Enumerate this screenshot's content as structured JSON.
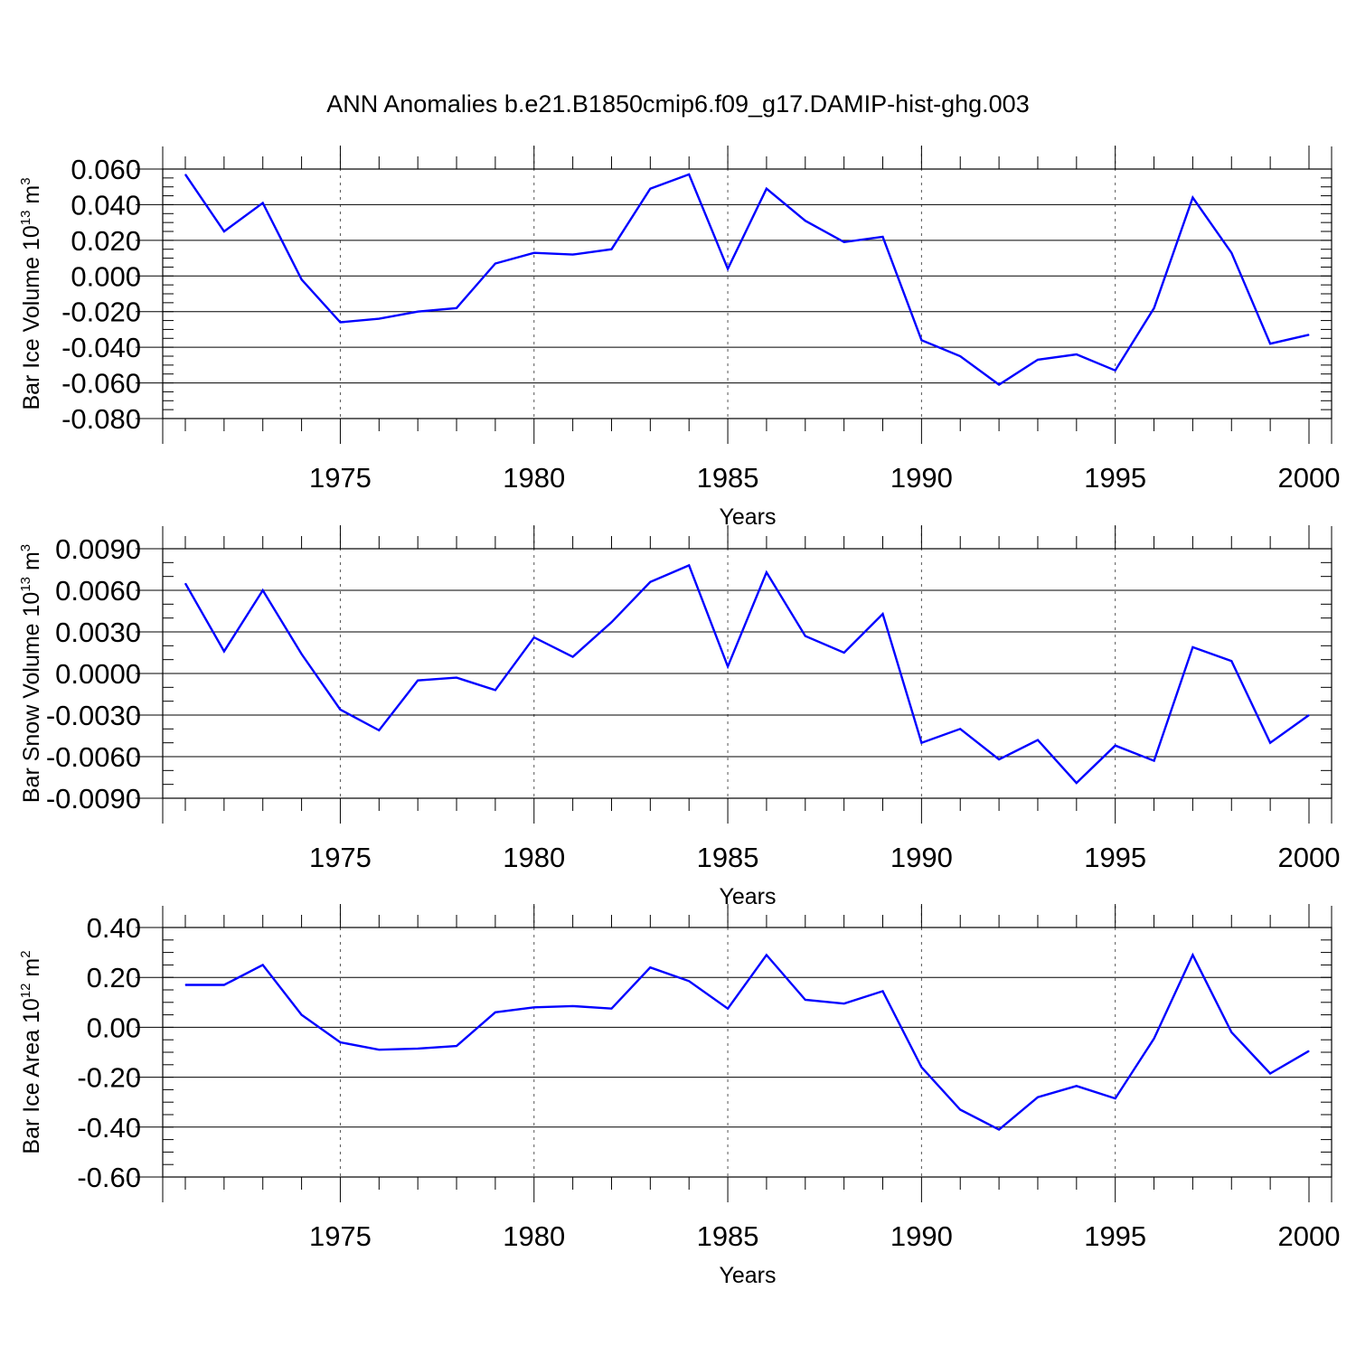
{
  "title": "ANN Anomalies b.e21.B1850cmip6.f09_g17.DAMIP-hist-ghg.003",
  "colors": {
    "series": "#0000ff",
    "grid": "#555555",
    "axis": "#000000"
  },
  "chart_data": [
    {
      "type": "line",
      "ylabel": {
        "prefix": "Bar Ice Volume 10",
        "exp": "13",
        "unit": " m",
        "unit_exp": "3"
      },
      "xlabel": "Years",
      "xlim": [
        1971,
        2000
      ],
      "ylim": [
        -0.08,
        0.06
      ],
      "yticks": [
        0.06,
        0.04,
        0.02,
        0.0,
        -0.02,
        -0.04,
        -0.06,
        -0.08
      ],
      "ytick_labels": [
        "0.060",
        "0.040",
        "0.020",
        "0.000",
        "-0.020",
        "-0.040",
        "-0.060",
        "-0.080"
      ],
      "yminor_step": 0.005,
      "xticks": [
        1975,
        1980,
        1985,
        1990,
        1995,
        2000
      ],
      "xtick_labels": [
        "1975",
        "1980",
        "1985",
        "1990",
        "1995",
        "2000"
      ],
      "grid": "vertical dashed at labeled years",
      "series": [
        {
          "x": [
            1971,
            1972,
            1973,
            1974,
            1975,
            1976,
            1977,
            1978,
            1979,
            1980,
            1981,
            1982,
            1983,
            1984,
            1985,
            1986,
            1987,
            1988,
            1989,
            1990,
            1991,
            1992,
            1993,
            1994,
            1995,
            1996,
            1997,
            1998,
            1999,
            2000
          ],
          "values": [
            0.057,
            0.025,
            0.041,
            -0.002,
            -0.026,
            -0.024,
            -0.02,
            -0.018,
            0.007,
            0.013,
            0.012,
            0.015,
            0.049,
            0.057,
            0.004,
            0.049,
            0.031,
            0.019,
            0.022,
            -0.036,
            -0.045,
            -0.061,
            -0.047,
            -0.044,
            -0.053,
            -0.018,
            0.044,
            0.013,
            -0.038,
            -0.033
          ]
        }
      ]
    },
    {
      "type": "line",
      "ylabel": {
        "prefix": "Bar Snow Volume 10",
        "exp": "13",
        "unit": " m",
        "unit_exp": "3"
      },
      "xlabel": "Years",
      "xlim": [
        1971,
        2000
      ],
      "ylim": [
        -0.009,
        0.009
      ],
      "yticks": [
        0.009,
        0.006,
        0.003,
        0.0,
        -0.003,
        -0.006,
        -0.009
      ],
      "ytick_labels": [
        "0.0090",
        "0.0060",
        "0.0030",
        "0.0000",
        "-0.0030",
        "-0.0060",
        "-0.0090"
      ],
      "yminor_step": 0.001,
      "xticks": [
        1975,
        1980,
        1985,
        1990,
        1995,
        2000
      ],
      "xtick_labels": [
        "1975",
        "1980",
        "1985",
        "1990",
        "1995",
        "2000"
      ],
      "grid": "vertical dashed at labeled years",
      "series": [
        {
          "x": [
            1971,
            1972,
            1973,
            1974,
            1975,
            1976,
            1977,
            1978,
            1979,
            1980,
            1981,
            1982,
            1983,
            1984,
            1985,
            1986,
            1987,
            1988,
            1989,
            1990,
            1991,
            1992,
            1993,
            1994,
            1995,
            1996,
            1997,
            1998,
            1999,
            2000
          ],
          "values": [
            0.0065,
            0.0016,
            0.006,
            0.0014,
            -0.0026,
            -0.0041,
            -0.0005,
            -0.0003,
            -0.0012,
            0.0026,
            0.0012,
            0.0037,
            0.0066,
            0.0078,
            0.0005,
            0.0073,
            0.0027,
            0.0015,
            0.0043,
            -0.005,
            -0.004,
            -0.0062,
            -0.0048,
            -0.0079,
            -0.0052,
            -0.0063,
            0.0019,
            0.0009,
            -0.005,
            -0.003
          ]
        }
      ]
    },
    {
      "type": "line",
      "ylabel": {
        "prefix": "Bar Ice Area 10",
        "exp": "12",
        "unit": " m",
        "unit_exp": "2"
      },
      "xlabel": "Years",
      "xlim": [
        1971,
        2000
      ],
      "ylim": [
        -0.6,
        0.4
      ],
      "yticks": [
        0.4,
        0.2,
        0.0,
        -0.2,
        -0.4,
        -0.6
      ],
      "ytick_labels": [
        "0.40",
        "0.20",
        "0.00",
        "-0.20",
        "-0.40",
        "-0.60"
      ],
      "yminor_step": 0.05,
      "xticks": [
        1975,
        1980,
        1985,
        1990,
        1995,
        2000
      ],
      "xtick_labels": [
        "1975",
        "1980",
        "1985",
        "1990",
        "1995",
        "2000"
      ],
      "grid": "vertical dashed at labeled years",
      "series": [
        {
          "x": [
            1971,
            1972,
            1973,
            1974,
            1975,
            1976,
            1977,
            1978,
            1979,
            1980,
            1981,
            1982,
            1983,
            1984,
            1985,
            1986,
            1987,
            1988,
            1989,
            1990,
            1991,
            1992,
            1993,
            1994,
            1995,
            1996,
            1997,
            1998,
            1999,
            2000
          ],
          "values": [
            0.17,
            0.17,
            0.25,
            0.05,
            -0.06,
            -0.09,
            -0.085,
            -0.075,
            0.06,
            0.08,
            0.085,
            0.075,
            0.24,
            0.185,
            0.075,
            0.29,
            0.11,
            0.095,
            0.145,
            -0.16,
            -0.33,
            -0.41,
            -0.28,
            -0.235,
            -0.285,
            -0.045,
            0.29,
            -0.02,
            -0.185,
            -0.095
          ]
        }
      ]
    }
  ]
}
